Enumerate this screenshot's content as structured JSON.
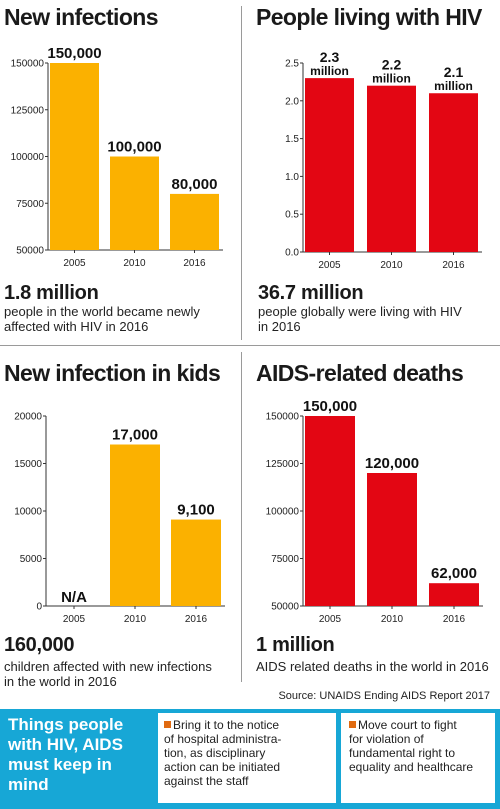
{
  "panels": [
    {
      "title": "New infections",
      "big_number": "1.8 million",
      "description": [
        "people in the world became newly",
        "affected with HIV in 2016"
      ]
    },
    {
      "title": "People living with HIV",
      "big_number": "36.7 million",
      "description": [
        "people globally were living with HIV",
        "in 2016"
      ]
    },
    {
      "title": "New infection in kids",
      "big_number": "160,000",
      "description": [
        "children affected with new infections",
        "in the world in 2016"
      ]
    },
    {
      "title": "AIDS-related deaths",
      "big_number": "1 million",
      "description": [
        "AIDS related deaths in the world in 2016"
      ]
    }
  ],
  "source": "Source: UNAIDS Ending AIDS Report 2017",
  "bottom": {
    "title": [
      "Things people",
      "with HIV, AIDS",
      "must keep in",
      "mind"
    ],
    "tips": [
      [
        "Bring it to the notice",
        "of hospital administra-",
        "tion, as disciplinary",
        "action can be initiated",
        "against the staff"
      ],
      [
        "Move court to fight",
        "for violation of",
        "fundamental right to",
        "equality and healthcare"
      ]
    ]
  },
  "colors": {
    "yellow": "#fbb100",
    "red": "#e30613",
    "blue": "#17a7d6",
    "orange_square": "#e06a10"
  },
  "chart_data": [
    {
      "type": "bar",
      "title": "New infections",
      "categories": [
        "2005",
        "2010",
        "2016"
      ],
      "values": [
        150000,
        100000,
        80000
      ],
      "data_labels": [
        "150,000",
        "100,000",
        "80,000"
      ],
      "ylim": [
        50000,
        150000
      ],
      "yticks": [
        50000,
        75000,
        100000,
        125000,
        150000
      ],
      "ytick_labels": [
        "50000",
        "75000",
        "100000",
        "125000",
        "150000"
      ],
      "color": "#fbb100"
    },
    {
      "type": "bar",
      "title": "People living with HIV",
      "categories": [
        "2005",
        "2010",
        "2016"
      ],
      "values": [
        2.3,
        2.2,
        2.1
      ],
      "data_labels": [
        [
          "2.3",
          "million"
        ],
        [
          "2.2",
          "million"
        ],
        [
          "2.1",
          "million"
        ]
      ],
      "ylim": [
        0,
        2.5
      ],
      "yticks": [
        0,
        0.5,
        1.0,
        1.5,
        2.0,
        2.5
      ],
      "ytick_labels": [
        "0.0",
        "0.5",
        "1.0",
        "1.5",
        "2.0",
        "2.5"
      ],
      "color": "#e30613"
    },
    {
      "type": "bar",
      "title": "New infection in kids",
      "categories": [
        "2005",
        "2010",
        "2016"
      ],
      "values": [
        null,
        17000,
        9100
      ],
      "data_labels": [
        "N/A",
        "17,000",
        "9,100"
      ],
      "ylim": [
        0,
        20000
      ],
      "yticks": [
        0,
        5000,
        10000,
        15000,
        20000
      ],
      "ytick_labels": [
        "0",
        "5000",
        "10000",
        "15000",
        "20000"
      ],
      "color": "#fbb100"
    },
    {
      "type": "bar",
      "title": "AIDS-related deaths",
      "categories": [
        "2005",
        "2010",
        "2016"
      ],
      "values": [
        150000,
        120000,
        62000
      ],
      "data_labels": [
        "150,000",
        "120,000",
        "62,000"
      ],
      "ylim": [
        50000,
        150000
      ],
      "yticks": [
        50000,
        75000,
        100000,
        125000,
        150000
      ],
      "ytick_labels": [
        "50000",
        "75000",
        "100000",
        "125000",
        "150000"
      ],
      "color": "#e30613"
    }
  ]
}
